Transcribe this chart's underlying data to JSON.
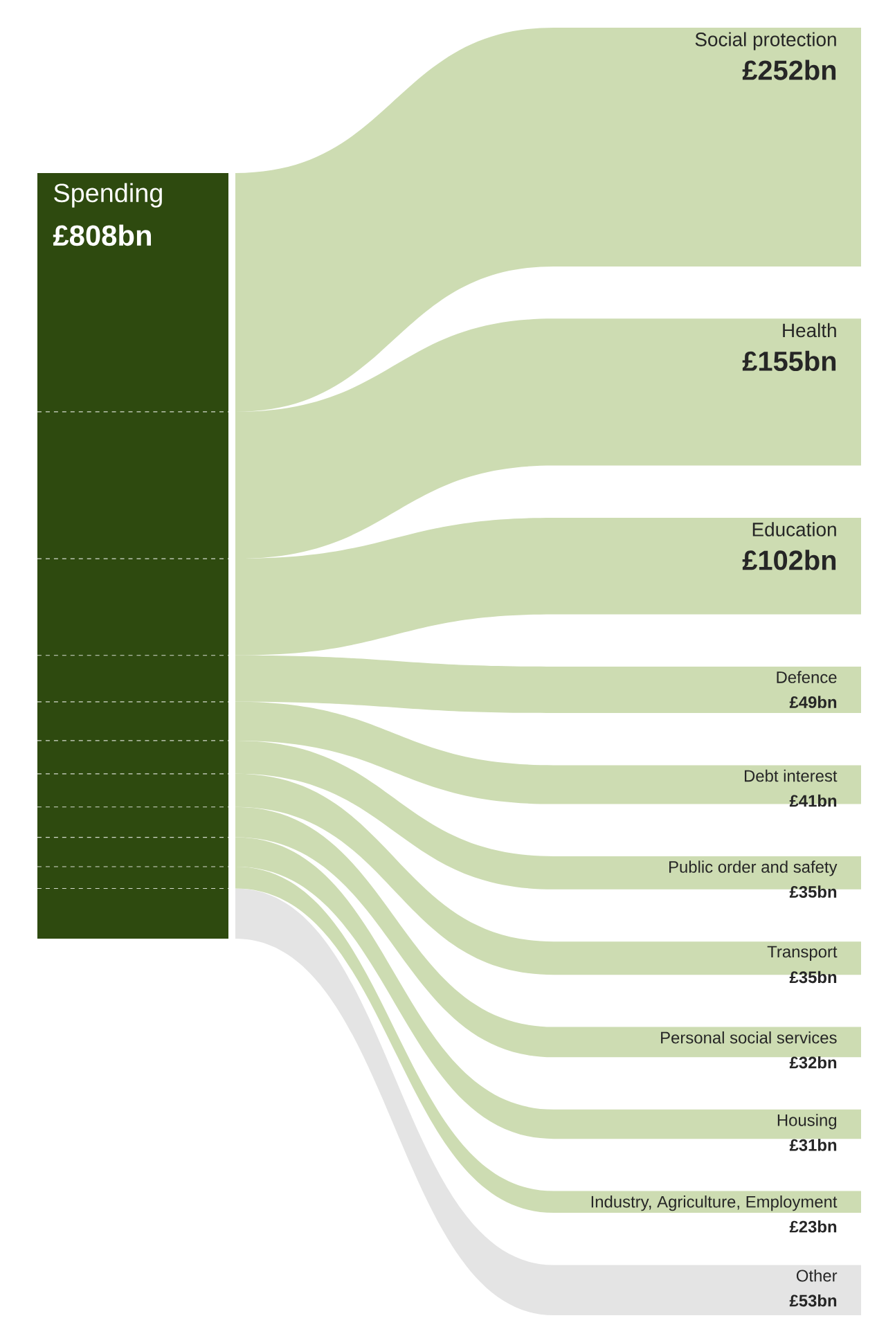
{
  "chart_data": {
    "type": "other",
    "title": "Spending",
    "subtitle": "£808bn",
    "color": "#2e4a0f",
    "categories": [
      "Social protection",
      "Health",
      "Education",
      "Defence",
      "Debt interest",
      "Public order and safety",
      "Transport",
      "Personal social services",
      "Housing",
      "Industry, Agriculture, Employment",
      "Other"
    ],
    "values": [
      252,
      155,
      102,
      49,
      41,
      35,
      35,
      32,
      31,
      23,
      53
    ],
    "value_labels": [
      "£252bn",
      "£155bn",
      "£102bn",
      "£49bn",
      "£41bn",
      "£35bn",
      "£35bn",
      "£32bn",
      "£31bn",
      "£23bn",
      "£53bn"
    ],
    "colors": [
      "#cddcb2",
      "#cddcb2",
      "#cddcb2",
      "#cddcb2",
      "#cddcb2",
      "#cddcb2",
      "#cddcb2",
      "#cddcb2",
      "#cddcb2",
      "#cddcb2",
      "#e4e4e4"
    ]
  }
}
